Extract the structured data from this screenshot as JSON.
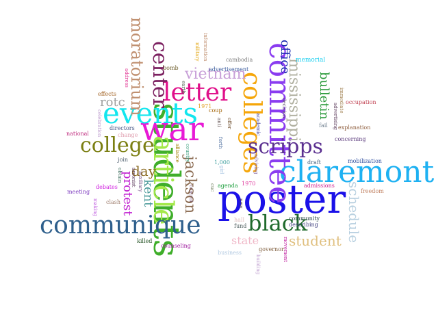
{
  "words": [
    {
      "text": "poster",
      "color": "#1a10e8"
    },
    {
      "text": "students",
      "color": "#3fae2a"
    },
    {
      "text": "claremont",
      "color": "#1eb1f2"
    },
    {
      "text": "committee",
      "color": "#8a3cf0"
    },
    {
      "text": "war",
      "color": "#e81ad6"
    },
    {
      "text": "events",
      "color": "#13e6ee"
    },
    {
      "text": "article",
      "color": "#a4e84a"
    },
    {
      "text": "communique",
      "color": "#2e5f8c"
    },
    {
      "text": "colleges",
      "color": "#f5a60a"
    },
    {
      "text": "letter",
      "color": "#e0108a"
    },
    {
      "text": "college",
      "color": "#7b7f12"
    },
    {
      "text": "center",
      "color": "#7c2060"
    },
    {
      "text": "scripps",
      "color": "#5b3090"
    },
    {
      "text": "black",
      "color": "#1f6a2c"
    },
    {
      "text": "moratorium",
      "color": "#c09070"
    },
    {
      "text": "mississippi",
      "color": "#b0b0a0"
    },
    {
      "text": "vietnam",
      "color": "#c8a0d8"
    },
    {
      "text": "jackson",
      "color": "#8a6a50"
    },
    {
      "text": "student",
      "color": "#e0c080"
    },
    {
      "text": "schedule",
      "color": "#b8d0e0"
    },
    {
      "text": "office",
      "color": "#1a2ab0"
    },
    {
      "text": "bulletin",
      "color": "#2a9a3a"
    },
    {
      "text": "protest",
      "color": "#c020d0"
    },
    {
      "text": "day",
      "color": "#8a6a20"
    },
    {
      "text": "kent",
      "color": "#4a9a9a"
    },
    {
      "text": "state",
      "color": "#f0b8c8"
    },
    {
      "text": "rotc",
      "color": "#a0a0a0"
    },
    {
      "text": "memorial",
      "color": "#20d0f0"
    },
    {
      "text": "occupation",
      "color": "#c04050"
    },
    {
      "text": "explanation",
      "color": "#906040"
    },
    {
      "text": "mobilization",
      "color": "#3050a0"
    },
    {
      "text": "admissions",
      "color": "#d02090"
    },
    {
      "text": "freedom",
      "color": "#c08060"
    },
    {
      "text": "advertisement",
      "color": "#4060a0"
    },
    {
      "text": "cambodia",
      "color": "#808080"
    },
    {
      "text": "bomb",
      "color": "#706030"
    },
    {
      "text": "effects",
      "color": "#a06020"
    },
    {
      "text": "national",
      "color": "#c03080"
    },
    {
      "text": "directors",
      "color": "#405080"
    },
    {
      "text": "change",
      "color": "#e0a0b0"
    },
    {
      "text": "meeting",
      "color": "#8040c0"
    },
    {
      "text": "debates",
      "color": "#d020e0"
    },
    {
      "text": "clash",
      "color": "#a08070"
    },
    {
      "text": "killed",
      "color": "#205020"
    },
    {
      "text": "counseling",
      "color": "#a020a0"
    },
    {
      "text": "business",
      "color": "#b0c8e0"
    },
    {
      "text": "governor",
      "color": "#806040"
    },
    {
      "text": "community",
      "color": "#204040"
    },
    {
      "text": "describing",
      "color": "#404080"
    },
    {
      "text": "agenda",
      "color": "#20a040"
    },
    {
      "text": "1970",
      "color": "#e040a0"
    },
    {
      "text": "1,000",
      "color": "#40a0a0"
    },
    {
      "text": "1971",
      "color": "#e0a020"
    },
    {
      "text": "coup",
      "color": "#a06000"
    },
    {
      "text": "draft",
      "color": "#406080"
    },
    {
      "text": "concerning",
      "color": "#604080"
    },
    {
      "text": "fail",
      "color": "#708090"
    },
    {
      "text": "join",
      "color": "#506070"
    },
    {
      "text": "obtain",
      "color": "#407060"
    },
    {
      "text": "arsonist",
      "color": "#604060"
    },
    {
      "text": "auxiliary",
      "color": "#806090"
    },
    {
      "text": "alliance",
      "color": "#a08000"
    },
    {
      "text": "country",
      "color": "#40a080"
    },
    {
      "text": "anti",
      "color": "#605050"
    },
    {
      "text": "offer",
      "color": "#705030"
    },
    {
      "text": "forth",
      "color": "#5070a0"
    },
    {
      "text": "academic",
      "color": "#4040a0"
    },
    {
      "text": "advising",
      "color": "#8060a0"
    },
    {
      "text": "decision",
      "color": "#605070"
    },
    {
      "text": "advertising",
      "color": "#604060"
    },
    {
      "text": "immediate",
      "color": "#a08050"
    },
    {
      "text": "information",
      "color": "#c09070"
    },
    {
      "text": "military",
      "color": "#e0a000"
    },
    {
      "text": "earth",
      "color": "#506050"
    },
    {
      "text": "address",
      "color": "#e03090"
    },
    {
      "text": "celebration",
      "color": "#c0a0d0"
    },
    {
      "text": "making",
      "color": "#c060e0"
    },
    {
      "text": "control",
      "color": "#806080"
    },
    {
      "text": "cuc",
      "color": "#708060"
    },
    {
      "text": "girl",
      "color": "#a0c0e0"
    },
    {
      "text": "new",
      "color": "#504040"
    },
    {
      "text": "fund",
      "color": "#506060"
    },
    {
      "text": "hall",
      "color": "#e0c0c0"
    },
    {
      "text": "building",
      "color": "#c0a0d0"
    },
    {
      "text": "movement",
      "color": "#c020a0"
    }
  ]
}
